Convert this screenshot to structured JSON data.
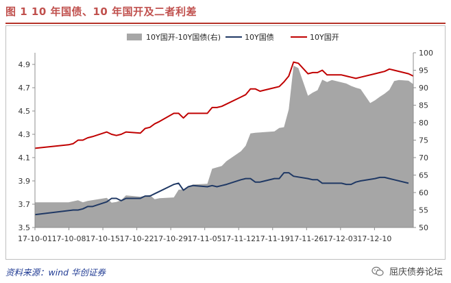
{
  "title": "图 1 10 年国债、10 年国开及二者利差",
  "footer": {
    "source": "资料来源：wind  华创证券",
    "watermark": "屈庆债券论坛"
  },
  "icons": {
    "watermark": "wechat-icon"
  },
  "colors": {
    "title": "#c0504d",
    "area": "#a6a6a6",
    "cgb": "#1f3864",
    "cdb": "#c00000"
  },
  "chart_data": {
    "type": "line",
    "legend_position": "top",
    "grid": false,
    "x_ticks": [
      "17-10-01",
      "17-10-08",
      "17-10-15",
      "17-10-22",
      "17-10-29",
      "17-11-05",
      "17-11-12",
      "17-11-19",
      "17-11-26",
      "17-12-03",
      "17-12-10"
    ],
    "y_left": {
      "min": 3.5,
      "max": 5.0,
      "ticks": [
        "3.5",
        "3.7",
        "3.9",
        "4.1",
        "4.3",
        "4.5",
        "4.7",
        "4.9"
      ]
    },
    "y_right": {
      "min": 50,
      "max": 100,
      "ticks": [
        "50",
        "55",
        "60",
        "65",
        "70",
        "75",
        "80",
        "85",
        "90",
        "95",
        "100"
      ]
    },
    "series": [
      {
        "name": "10Y国开-10Y国债(右)",
        "kind": "area",
        "axis": "right",
        "color": "#a6a6a6",
        "points": [
          [
            "2017-10-01",
            57.2
          ],
          [
            "2017-10-08",
            57.2
          ],
          [
            "2017-10-10",
            57.8
          ],
          [
            "2017-10-11",
            57.2
          ],
          [
            "2017-10-12",
            57.6
          ],
          [
            "2017-10-16",
            58.5
          ],
          [
            "2017-10-17",
            57.1
          ],
          [
            "2017-10-18",
            57.3
          ],
          [
            "2017-10-19",
            57.8
          ],
          [
            "2017-10-20",
            59.2
          ],
          [
            "2017-10-23",
            58.8
          ],
          [
            "2017-10-24",
            59.1
          ],
          [
            "2017-10-25",
            59.3
          ],
          [
            "2017-10-26",
            58.1
          ],
          [
            "2017-10-27",
            58.4
          ],
          [
            "2017-10-30",
            58.6
          ],
          [
            "2017-10-31",
            60.8
          ],
          [
            "2017-11-01",
            60.9
          ],
          [
            "2017-11-02",
            61.8
          ],
          [
            "2017-11-03",
            62.3
          ],
          [
            "2017-11-06",
            62.5
          ],
          [
            "2017-11-07",
            66.8
          ],
          [
            "2017-11-08",
            67.2
          ],
          [
            "2017-11-09",
            67.6
          ],
          [
            "2017-11-10",
            69.0
          ],
          [
            "2017-11-13",
            71.8
          ],
          [
            "2017-11-14",
            73.4
          ],
          [
            "2017-11-15",
            76.9
          ],
          [
            "2017-11-16",
            77.1
          ],
          [
            "2017-11-17",
            77.2
          ],
          [
            "2017-11-20",
            77.5
          ],
          [
            "2017-11-21",
            78.5
          ],
          [
            "2017-11-22",
            78.7
          ],
          [
            "2017-11-23",
            83.8
          ],
          [
            "2017-11-24",
            96.3
          ],
          [
            "2017-11-25",
            95.6
          ],
          [
            "2017-11-27",
            87.7
          ],
          [
            "2017-11-28",
            88.6
          ],
          [
            "2017-11-29",
            89.3
          ],
          [
            "2017-11-30",
            92.3
          ],
          [
            "2017-12-01",
            91.6
          ],
          [
            "2017-12-02",
            92.2
          ],
          [
            "2017-12-05",
            91.2
          ],
          [
            "2017-12-06",
            90.5
          ],
          [
            "2017-12-07",
            90.0
          ],
          [
            "2017-12-08",
            89.6
          ],
          [
            "2017-12-10",
            85.6
          ],
          [
            "2017-12-11",
            86.4
          ],
          [
            "2017-12-12",
            87.4
          ],
          [
            "2017-12-13",
            88.3
          ],
          [
            "2017-12-14",
            89.4
          ],
          [
            "2017-12-15",
            91.9
          ],
          [
            "2017-12-16",
            92.2
          ],
          [
            "2017-12-18",
            92.0
          ],
          [
            "2017-12-19",
            91.0
          ]
        ]
      },
      {
        "name": "10Y国债",
        "kind": "line",
        "axis": "left",
        "color": "#1f3864",
        "points": [
          [
            "2017-10-01",
            3.61
          ],
          [
            "2017-10-09",
            3.65
          ],
          [
            "2017-10-10",
            3.65
          ],
          [
            "2017-10-11",
            3.66
          ],
          [
            "2017-10-12",
            3.68
          ],
          [
            "2017-10-13",
            3.68
          ],
          [
            "2017-10-16",
            3.72
          ],
          [
            "2017-10-17",
            3.75
          ],
          [
            "2017-10-18",
            3.75
          ],
          [
            "2017-10-19",
            3.73
          ],
          [
            "2017-10-20",
            3.75
          ],
          [
            "2017-10-23",
            3.75
          ],
          [
            "2017-10-24",
            3.77
          ],
          [
            "2017-10-25",
            3.77
          ],
          [
            "2017-10-26",
            3.79
          ],
          [
            "2017-10-27",
            3.81
          ],
          [
            "2017-10-30",
            3.87
          ],
          [
            "2017-10-31",
            3.88
          ],
          [
            "2017-11-01",
            3.82
          ],
          [
            "2017-11-02",
            3.85
          ],
          [
            "2017-11-03",
            3.86
          ],
          [
            "2017-11-06",
            3.85
          ],
          [
            "2017-11-07",
            3.86
          ],
          [
            "2017-11-08",
            3.85
          ],
          [
            "2017-11-09",
            3.86
          ],
          [
            "2017-11-10",
            3.87
          ],
          [
            "2017-11-13",
            3.91
          ],
          [
            "2017-11-14",
            3.92
          ],
          [
            "2017-11-15",
            3.92
          ],
          [
            "2017-11-16",
            3.89
          ],
          [
            "2017-11-17",
            3.89
          ],
          [
            "2017-11-20",
            3.92
          ],
          [
            "2017-11-21",
            3.92
          ],
          [
            "2017-11-22",
            3.97
          ],
          [
            "2017-11-23",
            3.97
          ],
          [
            "2017-11-24",
            3.94
          ],
          [
            "2017-11-27",
            3.92
          ],
          [
            "2017-11-28",
            3.91
          ],
          [
            "2017-11-29",
            3.91
          ],
          [
            "2017-11-30",
            3.88
          ],
          [
            "2017-12-01",
            3.88
          ],
          [
            "2017-12-04",
            3.88
          ],
          [
            "2017-12-05",
            3.87
          ],
          [
            "2017-12-06",
            3.87
          ],
          [
            "2017-12-07",
            3.89
          ],
          [
            "2017-12-08",
            3.9
          ],
          [
            "2017-12-11",
            3.92
          ],
          [
            "2017-12-12",
            3.93
          ],
          [
            "2017-12-13",
            3.93
          ],
          [
            "2017-12-14",
            3.92
          ],
          [
            "2017-12-15",
            3.91
          ],
          [
            "2017-12-18",
            3.88
          ]
        ]
      },
      {
        "name": "10Y国开",
        "kind": "line",
        "axis": "left",
        "color": "#c00000",
        "points": [
          [
            "2017-10-01",
            4.18
          ],
          [
            "2017-10-08",
            4.21
          ],
          [
            "2017-10-09",
            4.22
          ],
          [
            "2017-10-10",
            4.25
          ],
          [
            "2017-10-11",
            4.25
          ],
          [
            "2017-10-12",
            4.27
          ],
          [
            "2017-10-13",
            4.28
          ],
          [
            "2017-10-16",
            4.32
          ],
          [
            "2017-10-17",
            4.3
          ],
          [
            "2017-10-18",
            4.29
          ],
          [
            "2017-10-19",
            4.3
          ],
          [
            "2017-10-20",
            4.32
          ],
          [
            "2017-10-23",
            4.31
          ],
          [
            "2017-10-24",
            4.35
          ],
          [
            "2017-10-25",
            4.36
          ],
          [
            "2017-10-26",
            4.39
          ],
          [
            "2017-10-27",
            4.41
          ],
          [
            "2017-10-30",
            4.48
          ],
          [
            "2017-10-31",
            4.48
          ],
          [
            "2017-11-01",
            4.44
          ],
          [
            "2017-11-02",
            4.48
          ],
          [
            "2017-11-03",
            4.48
          ],
          [
            "2017-11-06",
            4.48
          ],
          [
            "2017-11-07",
            4.53
          ],
          [
            "2017-11-08",
            4.53
          ],
          [
            "2017-11-09",
            4.54
          ],
          [
            "2017-11-10",
            4.56
          ],
          [
            "2017-11-13",
            4.62
          ],
          [
            "2017-11-14",
            4.64
          ],
          [
            "2017-11-15",
            4.69
          ],
          [
            "2017-11-16",
            4.69
          ],
          [
            "2017-11-17",
            4.67
          ],
          [
            "2017-11-20",
            4.7
          ],
          [
            "2017-11-21",
            4.71
          ],
          [
            "2017-11-22",
            4.75
          ],
          [
            "2017-11-23",
            4.8
          ],
          [
            "2017-11-24",
            4.92
          ],
          [
            "2017-11-25",
            4.91
          ],
          [
            "2017-11-27",
            4.82
          ],
          [
            "2017-11-28",
            4.83
          ],
          [
            "2017-11-29",
            4.83
          ],
          [
            "2017-11-30",
            4.85
          ],
          [
            "2017-12-01",
            4.81
          ],
          [
            "2017-12-04",
            4.81
          ],
          [
            "2017-12-05",
            4.8
          ],
          [
            "2017-12-06",
            4.79
          ],
          [
            "2017-12-07",
            4.78
          ],
          [
            "2017-12-08",
            4.79
          ],
          [
            "2017-12-11",
            4.82
          ],
          [
            "2017-12-12",
            4.83
          ],
          [
            "2017-12-13",
            4.84
          ],
          [
            "2017-12-14",
            4.86
          ],
          [
            "2017-12-15",
            4.85
          ],
          [
            "2017-12-18",
            4.82
          ],
          [
            "2017-12-19",
            4.8
          ]
        ]
      }
    ]
  }
}
